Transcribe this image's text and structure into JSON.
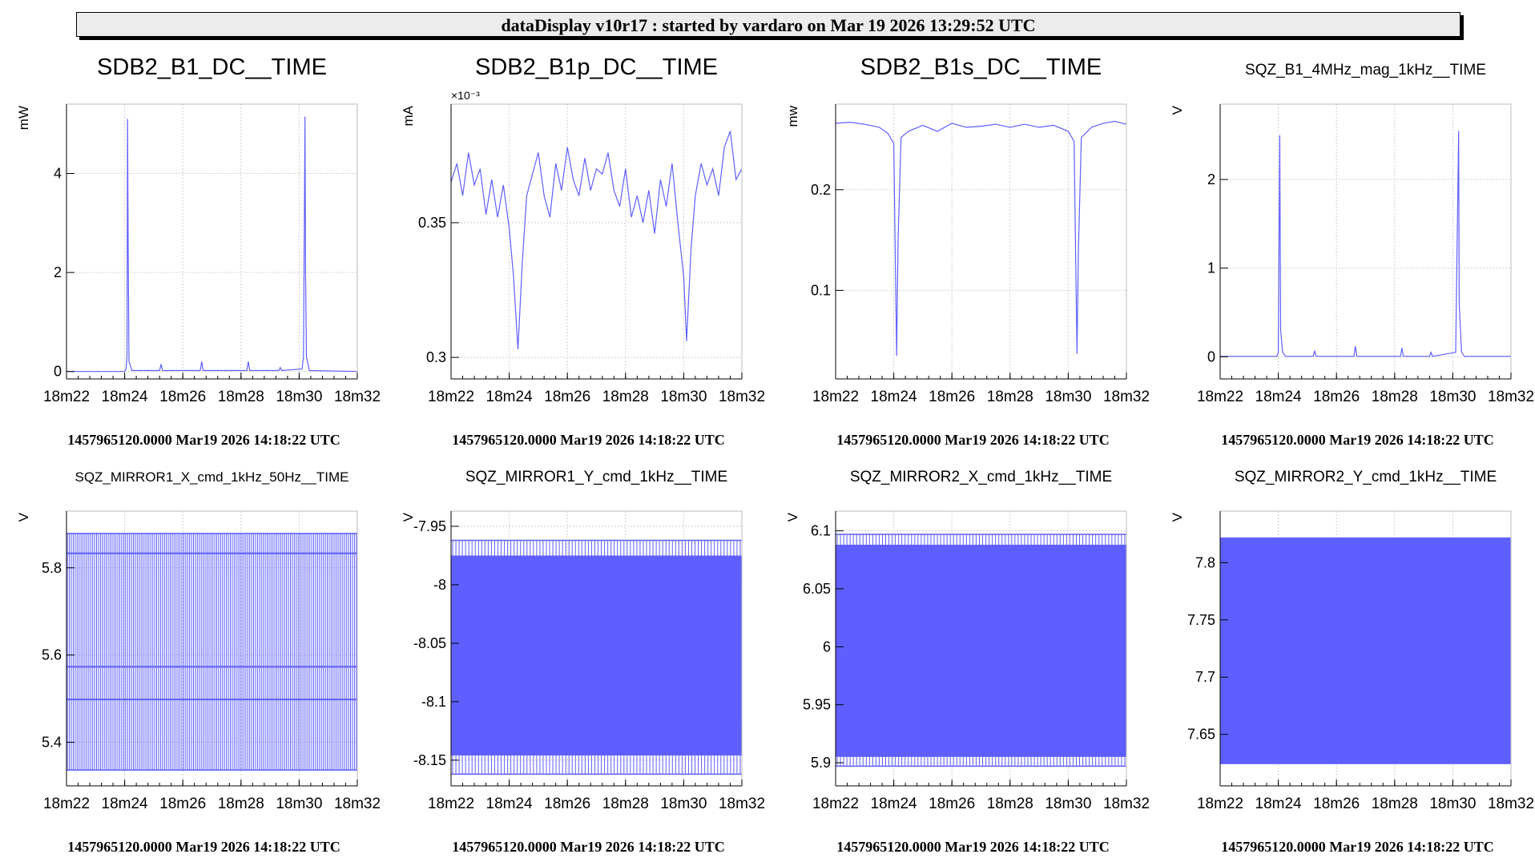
{
  "header": {
    "banner": "dataDisplay v10r17 : started by vardaro on Mar 19 2026 13:29:52 UTC"
  },
  "colors": {
    "trace": "#5f5fff",
    "axis": "#000000",
    "grid": "#d0d0d0",
    "background": "#ffffff"
  },
  "time_axis_ticks": [
    "18m22",
    "18m24",
    "18m26",
    "18m28",
    "18m30",
    "18m32"
  ],
  "chart_data": [
    {
      "type": "line",
      "title": "SDB2_B1_DC__TIME",
      "ylabel": "mW",
      "xlabel": "1457965120.0000 Mar19 2026 14:18:22 UTC",
      "xticks": [
        "18m22",
        "18m24",
        "18m26",
        "18m28",
        "18m30",
        "18m32"
      ],
      "xlim": [
        0,
        10
      ],
      "ylim": [
        -0.15,
        5.4
      ],
      "yticks": [
        0,
        2,
        4
      ],
      "ytick_labels": [
        "0",
        "2",
        "4"
      ],
      "grid": true,
      "series": [
        {
          "values": [
            [
              0,
              0
            ],
            [
              2.0,
              0
            ],
            [
              2.05,
              0.05
            ],
            [
              2.08,
              0.3
            ],
            [
              2.1,
              5.1
            ],
            [
              2.12,
              2.5
            ],
            [
              2.15,
              0.2
            ],
            [
              2.25,
              0.02
            ],
            [
              3.2,
              0.02
            ],
            [
              3.25,
              0.15
            ],
            [
              3.3,
              0.02
            ],
            [
              4.6,
              0.02
            ],
            [
              4.65,
              0.2
            ],
            [
              4.7,
              0.02
            ],
            [
              6.2,
              0.02
            ],
            [
              6.25,
              0.2
            ],
            [
              6.3,
              0.02
            ],
            [
              7.3,
              0.02
            ],
            [
              7.35,
              0.08
            ],
            [
              7.4,
              0.02
            ],
            [
              8.1,
              0.05
            ],
            [
              8.15,
              0.3
            ],
            [
              8.2,
              5.15
            ],
            [
              8.22,
              2.0
            ],
            [
              8.25,
              0.3
            ],
            [
              8.35,
              0.02
            ],
            [
              10,
              0
            ]
          ]
        }
      ]
    },
    {
      "type": "line",
      "title": "SDB2_B1p_DC__TIME",
      "ylabel": "mA",
      "y_multiplier": "×10⁻³",
      "xlabel": "1457965120.0000 Mar19 2026 14:18:22 UTC",
      "xticks": [
        "18m22",
        "18m24",
        "18m26",
        "18m28",
        "18m30",
        "18m32"
      ],
      "xlim": [
        0,
        10
      ],
      "ylim": [
        0.292,
        0.394
      ],
      "yticks": [
        0.3,
        0.35
      ],
      "ytick_labels": [
        "0.3",
        "0.35"
      ],
      "grid": true,
      "series": [
        {
          "values": [
            [
              0,
              0.365
            ],
            [
              0.2,
              0.372
            ],
            [
              0.4,
              0.36
            ],
            [
              0.6,
              0.376
            ],
            [
              0.8,
              0.364
            ],
            [
              1.0,
              0.37
            ],
            [
              1.2,
              0.353
            ],
            [
              1.4,
              0.366
            ],
            [
              1.6,
              0.352
            ],
            [
              1.8,
              0.364
            ],
            [
              2.0,
              0.348
            ],
            [
              2.15,
              0.33
            ],
            [
              2.3,
              0.303
            ],
            [
              2.45,
              0.335
            ],
            [
              2.6,
              0.36
            ],
            [
              2.8,
              0.368
            ],
            [
              3.0,
              0.376
            ],
            [
              3.2,
              0.36
            ],
            [
              3.4,
              0.352
            ],
            [
              3.6,
              0.372
            ],
            [
              3.8,
              0.362
            ],
            [
              4.0,
              0.378
            ],
            [
              4.2,
              0.366
            ],
            [
              4.4,
              0.36
            ],
            [
              4.6,
              0.374
            ],
            [
              4.8,
              0.362
            ],
            [
              5.0,
              0.37
            ],
            [
              5.2,
              0.368
            ],
            [
              5.4,
              0.376
            ],
            [
              5.6,
              0.362
            ],
            [
              5.8,
              0.356
            ],
            [
              6.0,
              0.37
            ],
            [
              6.2,
              0.352
            ],
            [
              6.4,
              0.36
            ],
            [
              6.6,
              0.35
            ],
            [
              6.8,
              0.362
            ],
            [
              7.0,
              0.346
            ],
            [
              7.2,
              0.366
            ],
            [
              7.4,
              0.356
            ],
            [
              7.6,
              0.372
            ],
            [
              7.8,
              0.35
            ],
            [
              8.0,
              0.33
            ],
            [
              8.1,
              0.306
            ],
            [
              8.25,
              0.34
            ],
            [
              8.4,
              0.36
            ],
            [
              8.6,
              0.372
            ],
            [
              8.8,
              0.364
            ],
            [
              9.0,
              0.37
            ],
            [
              9.2,
              0.36
            ],
            [
              9.4,
              0.378
            ],
            [
              9.6,
              0.384
            ],
            [
              9.8,
              0.366
            ],
            [
              10,
              0.37
            ]
          ]
        }
      ]
    },
    {
      "type": "line",
      "title": "SDB2_B1s_DC__TIME",
      "ylabel": "mw",
      "xlabel": "1457965120.0000 Mar19 2026 14:18:22 UTC",
      "xticks": [
        "18m22",
        "18m24",
        "18m26",
        "18m28",
        "18m30",
        "18m32"
      ],
      "xlim": [
        0,
        10
      ],
      "ylim": [
        0.012,
        0.285
      ],
      "yticks": [
        0.1,
        0.2
      ],
      "ytick_labels": [
        "0.1",
        "0.2"
      ],
      "grid": true,
      "series": [
        {
          "values": [
            [
              0,
              0.266
            ],
            [
              0.5,
              0.267
            ],
            [
              1.0,
              0.265
            ],
            [
              1.5,
              0.262
            ],
            [
              1.8,
              0.256
            ],
            [
              2.0,
              0.246
            ],
            [
              2.1,
              0.035
            ],
            [
              2.15,
              0.15
            ],
            [
              2.25,
              0.252
            ],
            [
              2.5,
              0.258
            ],
            [
              3.0,
              0.264
            ],
            [
              3.5,
              0.258
            ],
            [
              4.0,
              0.266
            ],
            [
              4.5,
              0.262
            ],
            [
              5.0,
              0.263
            ],
            [
              5.5,
              0.265
            ],
            [
              6.0,
              0.262
            ],
            [
              6.5,
              0.265
            ],
            [
              7.0,
              0.262
            ],
            [
              7.5,
              0.264
            ],
            [
              8.0,
              0.258
            ],
            [
              8.2,
              0.248
            ],
            [
              8.3,
              0.037
            ],
            [
              8.35,
              0.14
            ],
            [
              8.45,
              0.252
            ],
            [
              8.8,
              0.262
            ],
            [
              9.2,
              0.266
            ],
            [
              9.6,
              0.268
            ],
            [
              10,
              0.265
            ]
          ]
        }
      ]
    },
    {
      "type": "line",
      "title": "SQZ_B1_4MHz_mag_1kHz__TIME",
      "ylabel": "V",
      "xlabel": "1457965120.0000 Mar19 2026 14:18:22 UTC",
      "xticks": [
        "18m22",
        "18m24",
        "18m26",
        "18m28",
        "18m30",
        "18m32"
      ],
      "xlim": [
        0,
        10
      ],
      "ylim": [
        -0.25,
        2.85
      ],
      "yticks": [
        0,
        1,
        2
      ],
      "ytick_labels": [
        "0",
        "1",
        "2"
      ],
      "grid": true,
      "series": [
        {
          "values": [
            [
              0,
              0.005
            ],
            [
              1.95,
              0.005
            ],
            [
              2.0,
              0.05
            ],
            [
              2.05,
              2.5
            ],
            [
              2.08,
              0.3
            ],
            [
              2.15,
              0.05
            ],
            [
              2.25,
              0.005
            ],
            [
              3.2,
              0.005
            ],
            [
              3.25,
              0.07
            ],
            [
              3.3,
              0.005
            ],
            [
              4.6,
              0.005
            ],
            [
              4.65,
              0.12
            ],
            [
              4.7,
              0.005
            ],
            [
              6.2,
              0.005
            ],
            [
              6.25,
              0.1
            ],
            [
              6.3,
              0.005
            ],
            [
              7.2,
              0.005
            ],
            [
              7.25,
              0.05
            ],
            [
              7.3,
              0.005
            ],
            [
              8.1,
              0.05
            ],
            [
              8.2,
              2.55
            ],
            [
              8.22,
              0.6
            ],
            [
              8.3,
              0.05
            ],
            [
              8.4,
              0.005
            ],
            [
              10,
              0.005
            ]
          ]
        }
      ]
    },
    {
      "type": "line",
      "title": "SQZ_MIRROR1_X_cmd_1kHz_50Hz__TIME",
      "ylabel": "V",
      "xlabel": "1457965120.0000 Mar19 2026 14:18:22 UTC",
      "xticks": [
        "18m22",
        "18m24",
        "18m26",
        "18m28",
        "18m30",
        "18m32"
      ],
      "xlim": [
        0,
        10
      ],
      "ylim": [
        5.3,
        5.93
      ],
      "yticks": [
        5.4,
        5.6,
        5.8
      ],
      "ytick_labels": [
        "5.4",
        "5.6",
        "5.8"
      ],
      "grid": true,
      "band": {
        "min": 5.335,
        "max": 5.88,
        "inner_min": 5.5,
        "inner_max": 5.835,
        "mid_low": 5.572,
        "mid_high": 5.575,
        "oscillation": "square"
      },
      "series": []
    },
    {
      "type": "line",
      "title": "SQZ_MIRROR1_Y_cmd_1kHz__TIME",
      "ylabel": "V",
      "xlabel": "1457965120.0000 Mar19 2026 14:18:22 UTC",
      "xticks": [
        "18m22",
        "18m24",
        "18m26",
        "18m28",
        "18m30",
        "18m32"
      ],
      "xlim": [
        0,
        10
      ],
      "ylim": [
        -8.172,
        -7.937
      ],
      "yticks": [
        -8.15,
        -8.1,
        -8.05,
        -8.0,
        -7.95
      ],
      "ytick_labels": [
        "-8.15",
        "-8.1",
        "-8.05",
        "-8",
        "-7.95"
      ],
      "grid": true,
      "band": {
        "min": -8.162,
        "max": -7.962,
        "inner_min": -8.146,
        "inner_max": -7.975,
        "oscillation": "dense"
      },
      "series": []
    },
    {
      "type": "line",
      "title": "SQZ_MIRROR2_X_cmd_1kHz__TIME",
      "ylabel": "V",
      "xlabel": "1457965120.0000 Mar19 2026 14:18:22 UTC",
      "xticks": [
        "18m22",
        "18m24",
        "18m26",
        "18m28",
        "18m30",
        "18m32"
      ],
      "xlim": [
        0,
        10
      ],
      "ylim": [
        5.88,
        6.117
      ],
      "yticks": [
        5.9,
        5.95,
        6.0,
        6.05,
        6.1
      ],
      "ytick_labels": [
        "5.9",
        "5.95",
        "6",
        "6.05",
        "6.1"
      ],
      "grid": true,
      "band": {
        "min": 5.897,
        "max": 6.097,
        "inner_min": 5.905,
        "inner_max": 6.088,
        "oscillation": "dense"
      },
      "series": []
    },
    {
      "type": "line",
      "title": "SQZ_MIRROR2_Y_cmd_1kHz__TIME",
      "ylabel": "V",
      "xlabel": "1457965120.0000 Mar19 2026 14:18:22 UTC",
      "xticks": [
        "18m22",
        "18m24",
        "18m26",
        "18m28",
        "18m30",
        "18m32"
      ],
      "xlim": [
        0,
        10
      ],
      "ylim": [
        7.605,
        7.845
      ],
      "yticks": [
        7.65,
        7.7,
        7.75,
        7.8
      ],
      "ytick_labels": [
        "7.65",
        "7.7",
        "7.75",
        "7.8"
      ],
      "grid": true,
      "band": {
        "min": 7.624,
        "max": 7.822,
        "inner_min": 7.624,
        "inner_max": 7.822,
        "oscillation": "solid"
      },
      "series": []
    }
  ]
}
